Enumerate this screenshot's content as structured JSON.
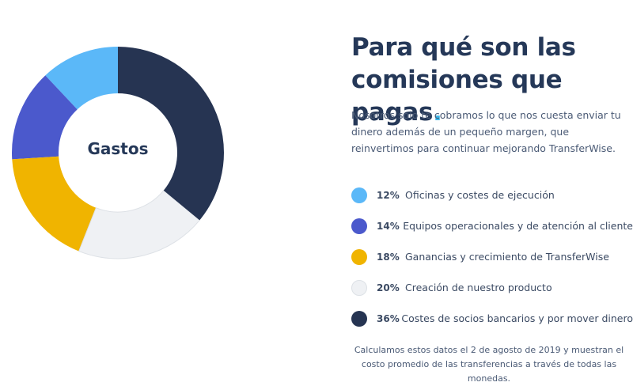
{
  "header": {
    "title_line1": "Para qué son las",
    "title_line2": "comisiones que pagas",
    "title_dot": "."
  },
  "intro": "Nosotros solo te cobramos lo que nos cuesta enviar tu dinero además de un pequeño margen, que reinvertimos para continuar mejorando TransferWise.",
  "footnote": "Calculamos estos datos el 2 de agosto de 2019 y muestran el costo promedio de las transferencias a través de todas las monedas.",
  "chart_data": {
    "type": "pie",
    "title": "Gastos",
    "categories": [
      "Oficinas y costes de ejecución",
      "Equipos operacionales y de atención al cliente",
      "Ganancias y crecimiento de TransferWise",
      "Creación de nuestro producto",
      "Costes de socios bancarios y por mover dinero"
    ],
    "values": [
      12,
      14,
      18,
      20,
      36
    ],
    "value_labels": [
      "12%",
      "14%",
      "18%",
      "20%",
      "36%"
    ],
    "colors": [
      "#5bb8f8",
      "#4b59cc",
      "#f0b400",
      "#eff1f4",
      "#263452"
    ],
    "legend_position": "right",
    "donut": true
  }
}
